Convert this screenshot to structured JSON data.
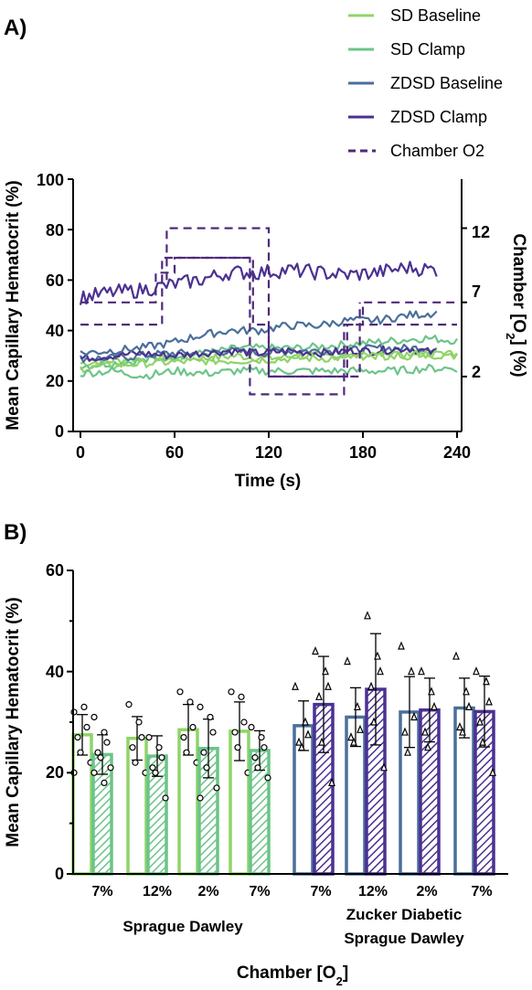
{
  "colors": {
    "sd_baseline": "#8fd468",
    "sd_clamp": "#6cc489",
    "zdsd_baseline": "#4a6f9a",
    "zdsd_clamp": "#4b3192",
    "chamber_o2": "#4f2a7a"
  },
  "chart_data": [
    {
      "panel": "A)",
      "type": "line",
      "xlabel": "Time (s)",
      "ylabel": "Mean Capillary Hematocrit (%)",
      "y2label_parts": [
        "Chamber [O",
        "2",
        "] (%)"
      ],
      "xlim": [
        0,
        240
      ],
      "ylim": [
        0,
        100
      ],
      "y2lim": [
        -1.7,
        15.3
      ],
      "xticks": [
        "0",
        "60",
        "120",
        "180",
        "240"
      ],
      "yticks": [
        "0",
        "20",
        "40",
        "60",
        "80",
        "100"
      ],
      "y2ticks": [
        "2",
        "7",
        "12"
      ],
      "legend_position": "top-right",
      "series": [
        {
          "name": "SD Baseline",
          "color_key": "sd_baseline",
          "dashed": false,
          "x_start": 0,
          "x_end": 240,
          "y_knots": [
            25,
            26,
            27,
            27.5,
            28,
            28,
            28.5,
            29,
            29,
            30,
            30,
            31,
            30
          ]
        },
        {
          "name": "SD Clamp",
          "color_key": "sd_clamp",
          "dashed": false,
          "x_start": 0,
          "x_end": 240,
          "y_knots": [
            23,
            24,
            22,
            24,
            23,
            24,
            24,
            24,
            24,
            24,
            24,
            25,
            25
          ]
        },
        {
          "name": "ZDSD Baseline",
          "color_key": "zdsd_baseline",
          "dashed": false,
          "x_start": 0,
          "x_end": 227,
          "y_knots": [
            31,
            32,
            33,
            35,
            38,
            40,
            40,
            42,
            42,
            44,
            44,
            46,
            47
          ]
        },
        {
          "name": "ZDSD Clamp",
          "color_key": "zdsd_clamp",
          "dashed": false,
          "x_start": 0,
          "x_end": 227,
          "y_knots": [
            53,
            55,
            56,
            58,
            60,
            63,
            63,
            64,
            63,
            62,
            63,
            65,
            64
          ]
        },
        {
          "name": "Chamber O2",
          "color_key": "chamber_o2",
          "dashed": true,
          "steps": [
            [
              0,
              7
            ],
            [
              48,
              7
            ],
            [
              48,
              9
            ],
            [
              60,
              9
            ],
            [
              60,
              10
            ],
            [
              110,
              10
            ],
            [
              110,
              5.5
            ],
            [
              120,
              5.5
            ],
            [
              120,
              2
            ],
            [
              170,
              2
            ],
            [
              170,
              5.5
            ],
            [
              180,
              5.5
            ],
            [
              180,
              7
            ],
            [
              240,
              7
            ]
          ]
        },
        {
          "name": "Chamber O2",
          "color_key": "chamber_o2",
          "dashed": true,
          "steps": [
            [
              0,
              5.5
            ],
            [
              52,
              5.5
            ],
            [
              52,
              10
            ],
            [
              108,
              10
            ],
            [
              108,
              0.8
            ],
            [
              168,
              0.8
            ],
            [
              168,
              5.5
            ],
            [
              240,
              5.5
            ]
          ]
        },
        {
          "name": "Chamber O2",
          "color_key": "chamber_o2",
          "dashed": true,
          "steps": [
            [
              55,
              8.5
            ],
            [
              55,
              12
            ],
            [
              120,
              12
            ],
            [
              120,
              2
            ],
            [
              178,
              2
            ],
            [
              178,
              7
            ]
          ]
        }
      ],
      "extra_traces": [
        {
          "color_key": "sd_baseline",
          "x_start": 0,
          "x_end": 240,
          "y_knots": [
            27,
            28,
            29,
            29,
            29,
            30,
            29,
            30,
            30,
            30,
            30,
            30,
            31
          ]
        },
        {
          "color_key": "sd_clamp",
          "x_start": 0,
          "x_end": 240,
          "y_knots": [
            26,
            27,
            28,
            30,
            31,
            33,
            33,
            33,
            34,
            35,
            36,
            37,
            36
          ]
        },
        {
          "color_key": "zdsd_baseline",
          "x_start": 0,
          "x_end": 227,
          "y_knots": [
            29,
            29,
            30,
            31,
            31,
            32,
            31,
            32,
            32,
            32,
            33,
            33,
            33
          ]
        },
        {
          "color_key": "zdsd_clamp",
          "x_start": 0,
          "x_end": 227,
          "y_knots": [
            29,
            30,
            31,
            30,
            31,
            32,
            31,
            32,
            31,
            32,
            32,
            33,
            31
          ]
        }
      ]
    },
    {
      "panel": "B)",
      "type": "bar",
      "ylabel": "Mean Capillary Hematocrit (%)",
      "xlabel_parts": [
        "Chamber [O",
        "2",
        "]"
      ],
      "ylim": [
        0,
        60
      ],
      "yticks": [
        "0",
        "20",
        "40",
        "60"
      ],
      "categories": [
        "7%",
        "12%",
        "2%",
        "7%",
        "7%",
        "12%",
        "2%",
        "7%"
      ],
      "groups": [
        {
          "lines": [
            "Sprague Dawley"
          ]
        },
        {
          "lines": [
            "Zucker Diabetic",
            "Sprague Dawley"
          ]
        }
      ],
      "series": [
        {
          "name": "SD Baseline",
          "color_key": "sd_baseline",
          "hatched": false,
          "marker": "circle",
          "means": [
            27.5,
            26.8,
            28.5,
            28.2
          ],
          "sd": [
            4,
            4.3,
            5,
            5.8
          ],
          "points": [
            [
              32,
              33,
              29,
              27,
              24,
              22,
              20
            ],
            [
              33.5,
              30,
              27,
              25,
              22,
              20
            ],
            [
              36,
              34,
              29,
              27,
              24,
              22
            ],
            [
              36,
              35,
              30,
              28,
              25,
              20
            ]
          ]
        },
        {
          "name": "SD Clamp",
          "color_key": "sd_clamp",
          "hatched": true,
          "marker": "circle",
          "means": [
            23.6,
            23.3,
            24.8,
            24.4
          ],
          "sd": [
            3.9,
            4,
            5.8,
            3.9
          ],
          "points": [
            [
              31,
              28,
              26,
              24,
              23,
              21,
              20,
              18
            ],
            [
              27,
              25,
              23,
              21,
              20,
              15
            ],
            [
              33,
              31,
              28,
              24,
              21,
              17,
              15
            ],
            [
              29,
              27,
              25,
              23,
              21,
              19
            ]
          ]
        },
        {
          "name": "ZDSD Baseline",
          "color_key": "zdsd_baseline",
          "hatched": false,
          "marker": "triangle",
          "means": [
            29.3,
            31,
            32,
            32.8
          ],
          "sd": [
            4.9,
            5.8,
            7,
            5.9
          ],
          "points": [
            [
              37,
              30,
              27.5,
              26,
              25
            ],
            [
              42,
              33,
              28.5,
              27,
              26
            ],
            [
              45,
              40,
              31,
              28,
              24
            ],
            [
              43,
              36,
              33,
              29,
              28
            ]
          ]
        },
        {
          "name": "ZDSD Clamp",
          "color_key": "zdsd_clamp",
          "hatched": true,
          "marker": "triangle",
          "means": [
            33.5,
            36.5,
            32.4,
            32.1
          ],
          "sd": [
            9.5,
            11,
            6.3,
            7
          ],
          "points": [
            [
              44,
              40,
              37,
              35,
              26,
              18
            ],
            [
              51,
              43,
              40,
              37,
              30,
              21
            ],
            [
              40,
              36,
              33,
              28,
              25
            ],
            [
              40,
              38,
              34,
              30,
              26,
              20
            ]
          ]
        }
      ]
    }
  ]
}
